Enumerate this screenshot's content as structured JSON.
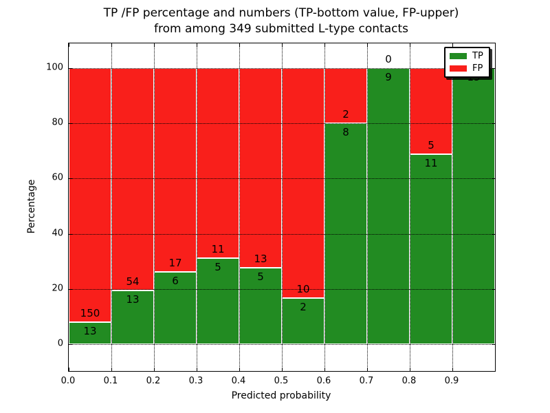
{
  "title": {
    "line1": "TP /FP percentage and numbers (TP-bottom value, FP-upper)",
    "line2": "from among 349 submitted L-type contacts"
  },
  "chart_data": {
    "type": "bar",
    "stacked": true,
    "normalized_to_percent": true,
    "title": "TP /FP percentage and numbers (TP-bottom value, FP-upper) from among 349 submitted L-type contacts",
    "xlabel": "Predicted probability",
    "ylabel": "Percentage",
    "total_contacts": 349,
    "bin_width": 0.1,
    "bin_starts": [
      0.0,
      0.1,
      0.2,
      0.3,
      0.4,
      0.5,
      0.6,
      0.7,
      0.8,
      0.9
    ],
    "series": [
      {
        "name": "TP",
        "color": "#228b22",
        "counts": [
          13,
          13,
          6,
          5,
          5,
          2,
          8,
          9,
          11,
          15
        ]
      },
      {
        "name": "FP",
        "color": "#f91f1b",
        "counts": [
          150,
          54,
          17,
          11,
          13,
          10,
          2,
          0,
          5,
          0
        ]
      }
    ],
    "annotation_note": "TP count shown below boundary, FP count shown above boundary",
    "xticks": [
      "0.0",
      "0.1",
      "0.2",
      "0.3",
      "0.4",
      "0.5",
      "0.6",
      "0.7",
      "0.8",
      "0.9"
    ],
    "yticks": [
      0,
      20,
      40,
      60,
      80,
      100
    ],
    "xlim": [
      0.0,
      1.0
    ],
    "ylim": [
      -10,
      109
    ],
    "grid": "dotted",
    "legend": {
      "position": "upper right",
      "entries": [
        "TP",
        "FP"
      ]
    },
    "edge_color": "#ffffff"
  }
}
